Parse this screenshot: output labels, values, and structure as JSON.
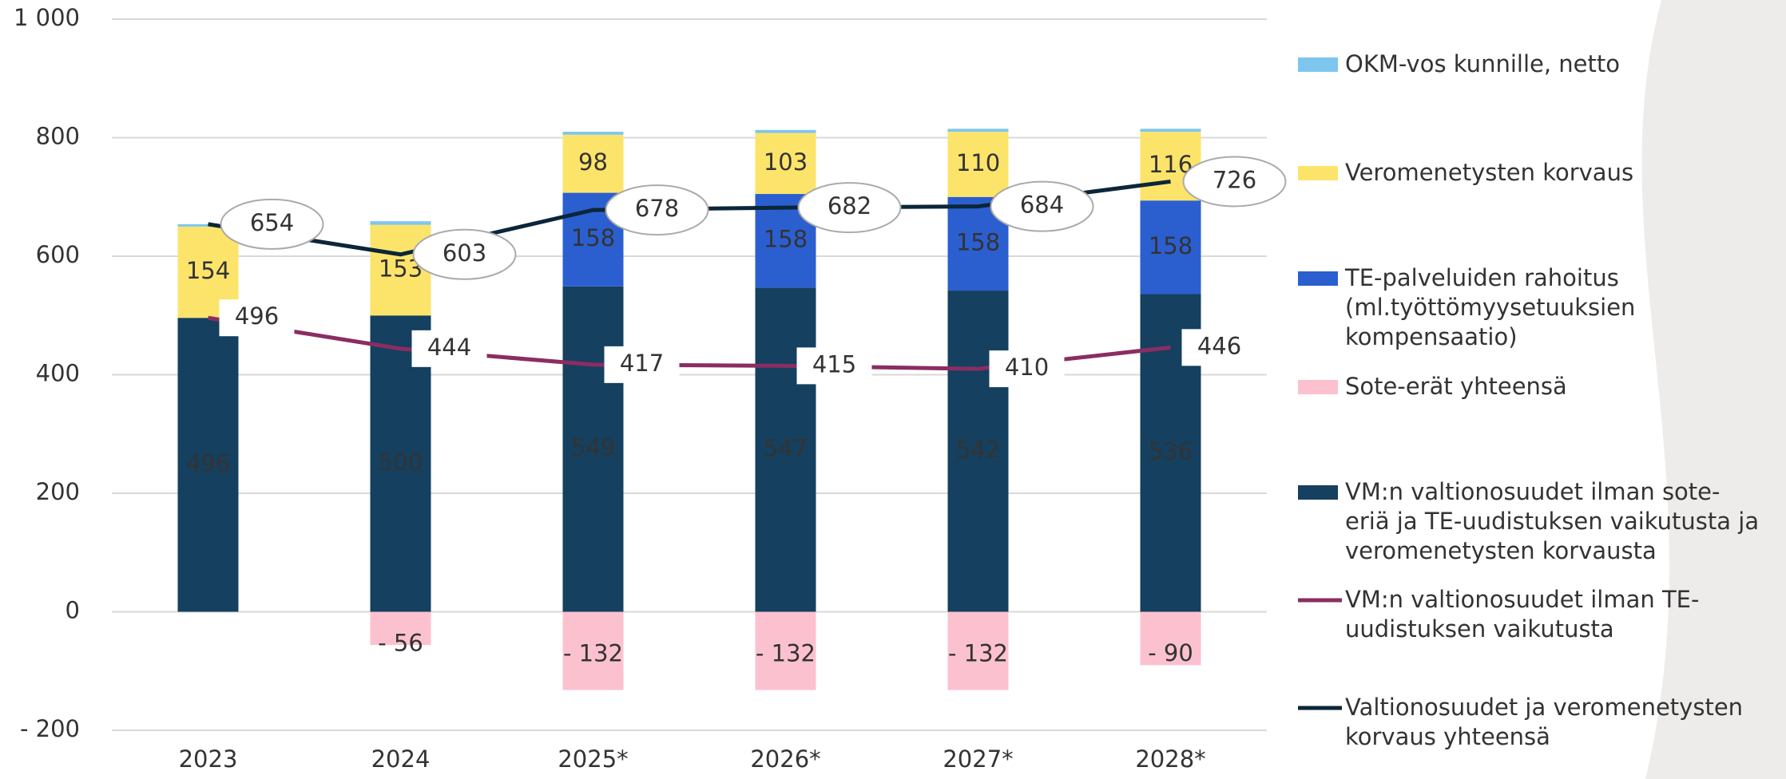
{
  "chart_data": {
    "type": "bar",
    "categories": [
      "2023",
      "2024",
      "2025*",
      "2026*",
      "2027*",
      "2028*"
    ],
    "ylim": [
      -200,
      1000
    ],
    "yticks": [
      {
        "value": -200,
        "label": "- 200"
      },
      0,
      200,
      400,
      600,
      800,
      {
        "value": 1000,
        "label": "1 000"
      }
    ],
    "grid": true,
    "series": [
      {
        "name": "VM:n valtionosuudet ilman sote-eriä ja TE-uudistuksen vaikutusta ja veromenetysten korvausta",
        "type": "bar",
        "color": "#15405f",
        "values": [
          496,
          500,
          549,
          547,
          542,
          536
        ]
      },
      {
        "name": "TE-palveluiden rahoitus (ml.työttömyysetuuksien kompensaatio)",
        "type": "bar",
        "color": "#2b5fd0",
        "values": [
          null,
          null,
          158,
          158,
          158,
          158
        ]
      },
      {
        "name": "Veromenetysten korvaus",
        "type": "bar",
        "color": "#fce46b",
        "values": [
          154,
          153,
          98,
          103,
          110,
          116
        ]
      },
      {
        "name": "OKM-vos kunnille, netto",
        "type": "bar",
        "color": "#7dc6ee",
        "values": [
          4,
          6,
          5,
          5,
          5,
          5
        ]
      },
      {
        "name": "Sote-erät yhteensä",
        "type": "bar",
        "color": "#fcc1cf",
        "values": [
          null,
          -56,
          -132,
          -132,
          -132,
          -90
        ],
        "value_labels": [
          null,
          "- 56",
          "- 132",
          "- 132",
          "- 132",
          "- 90"
        ]
      },
      {
        "name": "VM:n valtionosuudet ilman TE-uudistuksen vaikutusta",
        "type": "line",
        "color": "#8a2d62",
        "values": [
          496,
          444,
          417,
          415,
          410,
          446
        ]
      },
      {
        "name": "Valtionosuudet ja veromenetysten korvaus yhteensä",
        "type": "line",
        "color": "#0b2639",
        "values": [
          654,
          603,
          678,
          682,
          684,
          726
        ]
      }
    ]
  }
}
